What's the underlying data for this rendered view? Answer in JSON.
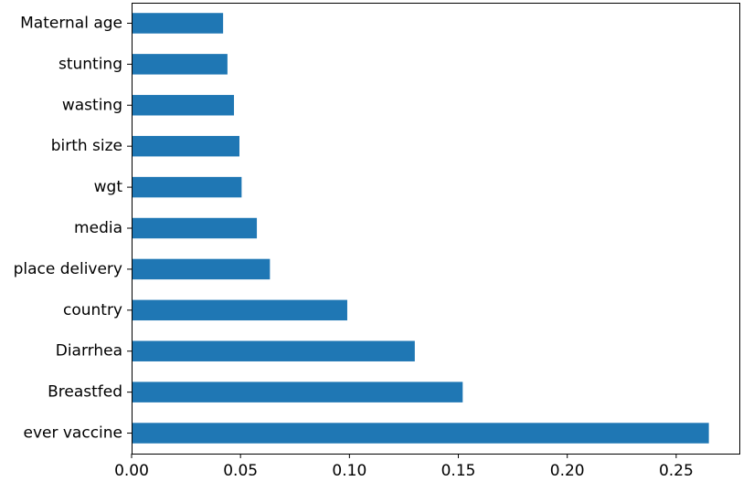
{
  "chart_data": {
    "type": "bar",
    "orientation": "horizontal",
    "categories": [
      "Maternal age",
      "stunting",
      "wasting",
      "birth size",
      "wgt",
      "media",
      "place delivery",
      "country",
      "Diarrhea",
      "Breastfed",
      "ever vaccine"
    ],
    "values": [
      0.042,
      0.044,
      0.047,
      0.0495,
      0.0505,
      0.0575,
      0.0635,
      0.099,
      0.13,
      0.152,
      0.265
    ],
    "xlim": [
      0.0,
      0.279
    ],
    "xticks": [
      0.0,
      0.05,
      0.1,
      0.15,
      0.2,
      0.25
    ],
    "xtick_labels": [
      "0.00",
      "0.05",
      "0.10",
      "0.15",
      "0.20",
      "0.25"
    ],
    "title": "",
    "xlabel": "",
    "ylabel": "",
    "grid": false,
    "bar_color": "#1f77b4"
  }
}
